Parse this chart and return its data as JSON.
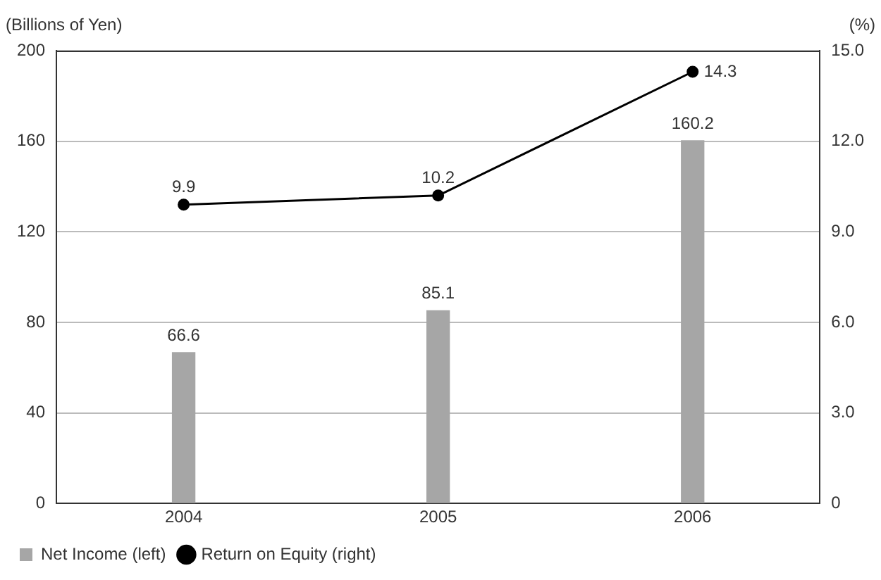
{
  "chart_data": {
    "type": "bar",
    "categories": [
      "2004",
      "2005",
      "2006"
    ],
    "ylabel": "(Billions of Yen)",
    "y2label": "(%)",
    "series": [
      {
        "name": "Net Income (left)",
        "type": "bar",
        "color": "#a6a6a6",
        "values": [
          66.6,
          85.1,
          160.2
        ]
      },
      {
        "name": "Return on Equity (right)",
        "type": "line",
        "axis": "y2",
        "color": "#000000",
        "values": [
          9.9,
          10.2,
          14.3
        ]
      }
    ],
    "ylim": [
      0,
      200
    ],
    "yticks": [
      0,
      40,
      80,
      120,
      160,
      200
    ],
    "y2lim": [
      0,
      15
    ],
    "y2ticks": [
      0,
      {
        "value": 3,
        "label": "3.0"
      },
      {
        "value": 6,
        "label": "6.0"
      },
      {
        "value": 9,
        "label": "9.0"
      },
      {
        "value": 12,
        "label": "12.0"
      },
      {
        "value": 15,
        "label": "15.0"
      }
    ],
    "grid": "y",
    "legend": "bottom left",
    "marker": "circle",
    "line_style": "solid",
    "data_labels": true
  }
}
